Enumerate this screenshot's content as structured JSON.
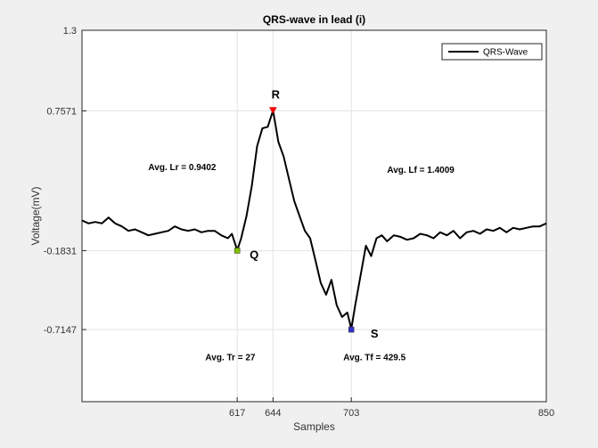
{
  "chart_data": {
    "type": "line",
    "title": "QRS-wave in lead (i)",
    "xlabel": "Samples",
    "ylabel": "Voltage(mV)",
    "xlim": [
      500,
      850
    ],
    "ylim": [
      -1.2,
      1.3
    ],
    "xticks": [
      617,
      644,
      703,
      850
    ],
    "xtick_labels": [
      "617",
      "644",
      "703",
      "850"
    ],
    "yticks": [
      1.3,
      0.7571,
      -0.1831,
      -0.7147
    ],
    "ytick_labels": [
      "1.3",
      "0.7571",
      "-0.1831",
      "-0.7147"
    ],
    "grid": true,
    "legend_position": "top-right",
    "series": [
      {
        "name": "QRS-Wave",
        "color": "#000000",
        "x": [
          500,
          505,
          510,
          515,
          520,
          525,
          530,
          535,
          540,
          545,
          550,
          555,
          560,
          565,
          570,
          575,
          580,
          585,
          590,
          595,
          600,
          605,
          610,
          613,
          617,
          620,
          624,
          628,
          632,
          636,
          640,
          644,
          648,
          652,
          656,
          660,
          664,
          668,
          672,
          676,
          680,
          684,
          688,
          692,
          696,
          700,
          703,
          706,
          710,
          714,
          718,
          722,
          726,
          730,
          735,
          740,
          745,
          750,
          755,
          760,
          765,
          770,
          775,
          780,
          785,
          790,
          795,
          800,
          805,
          810,
          815,
          820,
          825,
          830,
          835,
          840,
          845,
          850
        ],
        "y": [
          0.02,
          0.0,
          0.01,
          0.0,
          0.04,
          0.0,
          -0.02,
          -0.05,
          -0.04,
          -0.06,
          -0.08,
          -0.07,
          -0.06,
          -0.05,
          -0.02,
          -0.04,
          -0.05,
          -0.04,
          -0.06,
          -0.05,
          -0.05,
          -0.08,
          -0.1,
          -0.07,
          -0.18,
          -0.1,
          0.05,
          0.25,
          0.52,
          0.64,
          0.65,
          0.76,
          0.55,
          0.45,
          0.3,
          0.15,
          0.05,
          -0.05,
          -0.1,
          -0.25,
          -0.4,
          -0.48,
          -0.38,
          -0.55,
          -0.63,
          -0.6,
          -0.71,
          -0.55,
          -0.35,
          -0.15,
          -0.22,
          -0.1,
          -0.08,
          -0.12,
          -0.08,
          -0.09,
          -0.11,
          -0.1,
          -0.07,
          -0.08,
          -0.1,
          -0.06,
          -0.08,
          -0.05,
          -0.1,
          -0.06,
          -0.05,
          -0.07,
          -0.04,
          -0.05,
          -0.03,
          -0.06,
          -0.03,
          -0.04,
          -0.03,
          -0.02,
          -0.02,
          0.0
        ]
      }
    ],
    "points": [
      {
        "label": "R",
        "x": 644,
        "y": 0.7571,
        "color": "#ff0000",
        "marker": "triangle-down"
      },
      {
        "label": "Q",
        "x": 617,
        "y": -0.1831,
        "color": "#7fbf00",
        "marker": "square"
      },
      {
        "label": "S",
        "x": 703,
        "y": -0.7147,
        "color": "#3333cc",
        "marker": "square"
      }
    ],
    "annotations": [
      {
        "text": "Avg. Lr = 0.9402",
        "x": 550,
        "y": 0.36
      },
      {
        "text": "Avg. Lf = 1.4009",
        "x": 730,
        "y": 0.34
      },
      {
        "text": "Avg. Tr = 27",
        "x": 593,
        "y": -0.92
      },
      {
        "text": "Avg. Tf = 429.5",
        "x": 697,
        "y": -0.92
      }
    ]
  }
}
